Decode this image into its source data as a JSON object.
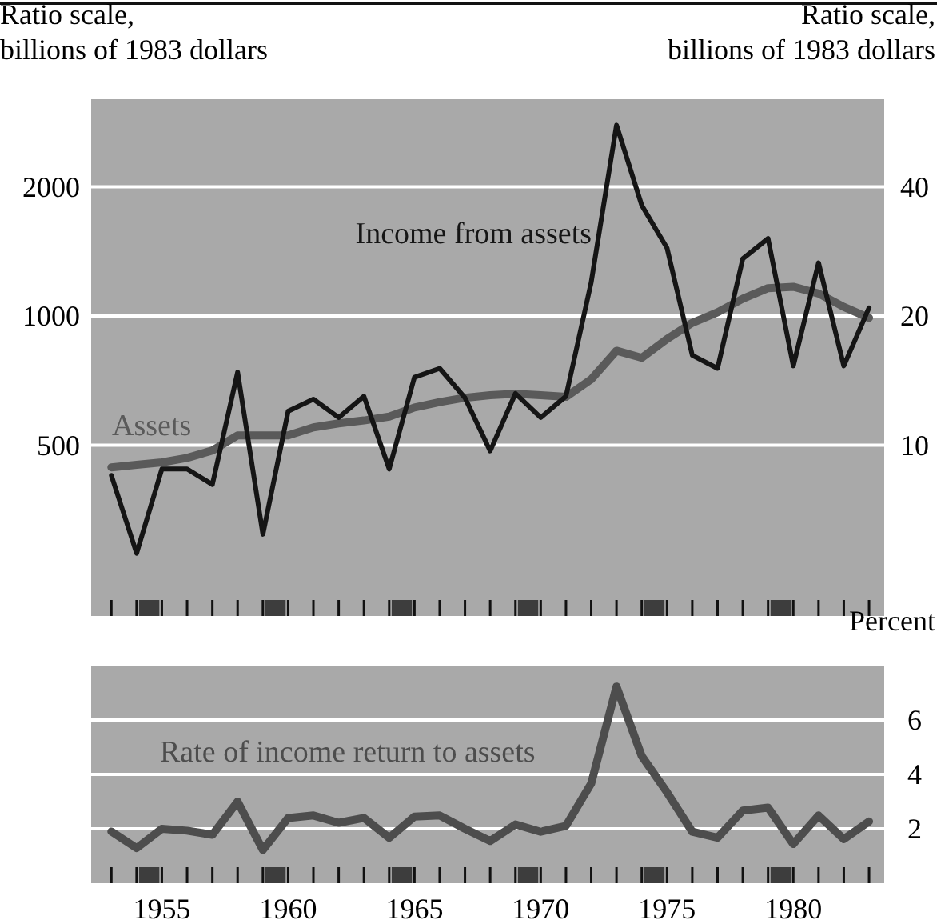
{
  "chart_data": [
    {
      "type": "line",
      "ylabel": "Ratio scale,\nbillions of 1983 dollars",
      "log": true,
      "grid": "y",
      "legend": false,
      "tick_labels": "y",
      "xlim": [
        1952.2,
        1983.6
      ],
      "ylim": [
        200,
        3200
      ],
      "yticks": [
        500,
        1000,
        2000
      ],
      "x": [
        1953,
        1954,
        1955,
        1956,
        1957,
        1958,
        1959,
        1960,
        1961,
        1962,
        1963,
        1964,
        1965,
        1966,
        1967,
        1968,
        1969,
        1970,
        1971,
        1972,
        1973,
        1974,
        1975,
        1976,
        1977,
        1978,
        1979,
        1980,
        1981,
        1982,
        1983
      ],
      "series": [
        {
          "name": "Assets",
          "color": "#5a5a5a",
          "values": [
            444,
            450,
            456,
            467,
            486,
            527,
            527,
            527,
            550,
            562,
            571,
            583,
            612,
            630,
            645,
            654,
            659,
            654,
            648,
            712,
            830,
            799,
            884,
            964,
            1020,
            1097,
            1161,
            1170,
            1128,
            1050,
            990
          ]
        }
      ]
    },
    {
      "type": "line",
      "y2label": "Ratio scale,\nbillions of 1983 dollars",
      "log": "y2",
      "legend": false,
      "tick_labels": "y",
      "xlim": [
        1952.2,
        1983.6
      ],
      "y2lim": [
        4,
        64
      ],
      "y2ticks": [
        10,
        20,
        40
      ],
      "x": [
        1953,
        1954,
        1955,
        1956,
        1957,
        1958,
        1959,
        1960,
        1961,
        1962,
        1963,
        1964,
        1965,
        1966,
        1967,
        1968,
        1969,
        1970,
        1971,
        1972,
        1973,
        1974,
        1975,
        1976,
        1977,
        1978,
        1979,
        1980,
        1981,
        1982,
        1983
      ],
      "series": [
        {
          "name": "Income from assets",
          "color": "#151515",
          "axis": "y2",
          "values": [
            8.5,
            5.6,
            8.8,
            8.8,
            8.1,
            14.8,
            6.2,
            12.0,
            12.8,
            11.6,
            13.0,
            8.8,
            14.4,
            15.1,
            12.9,
            9.7,
            13.2,
            11.6,
            13.0,
            24,
            55.7,
            36.2,
            28.8,
            16.2,
            15.1,
            27.2,
            30.3,
            15.3,
            26.6,
            15.3,
            20.9
          ]
        }
      ]
    },
    {
      "type": "line",
      "y2label": "Percent",
      "grid": "y",
      "legend": false,
      "xlim": [
        1952.2,
        1983.6
      ],
      "xticks": [
        {
          "value": 1953,
          "label": null
        },
        {
          "value": 1954,
          "label": null
        },
        {
          "value": 1955,
          "label": "1955"
        },
        {
          "value": 1956,
          "label": null
        },
        {
          "value": 1957,
          "label": null
        },
        {
          "value": 1958,
          "label": null
        },
        {
          "value": 1959,
          "label": null
        },
        {
          "value": 1960,
          "label": "1960"
        },
        {
          "value": 1961,
          "label": null
        },
        {
          "value": 1962,
          "label": null
        },
        {
          "value": 1963,
          "label": null
        },
        {
          "value": 1964,
          "label": null
        },
        {
          "value": 1965,
          "label": "1965"
        },
        {
          "value": 1966,
          "label": null
        },
        {
          "value": 1967,
          "label": null
        },
        {
          "value": 1968,
          "label": null
        },
        {
          "value": 1969,
          "label": null
        },
        {
          "value": 1970,
          "label": "1970"
        },
        {
          "value": 1971,
          "label": null
        },
        {
          "value": 1972,
          "label": null
        },
        {
          "value": 1973,
          "label": null
        },
        {
          "value": 1974,
          "label": null
        },
        {
          "value": 1975,
          "label": "1975"
        },
        {
          "value": 1976,
          "label": null
        },
        {
          "value": 1977,
          "label": null
        },
        {
          "value": 1978,
          "label": null
        },
        {
          "value": 1979,
          "label": null
        },
        {
          "value": 1980,
          "label": "1980"
        },
        {
          "value": 1981,
          "label": null
        },
        {
          "value": 1982,
          "label": null
        },
        {
          "value": 1983,
          "label": null
        }
      ],
      "y2lim": [
        0,
        8
      ],
      "y2ticks": [
        2,
        4,
        6
      ],
      "x": [
        1953,
        1954,
        1955,
        1956,
        1957,
        1958,
        1959,
        1960,
        1961,
        1962,
        1963,
        1964,
        1965,
        1966,
        1967,
        1968,
        1969,
        1970,
        1971,
        1972,
        1973,
        1974,
        1975,
        1976,
        1977,
        1978,
        1979,
        1980,
        1981,
        1982,
        1983
      ],
      "series": [
        {
          "name": "Rate of income return to assets",
          "color": "#4d4d4d",
          "axis": "y2",
          "values": [
            1.9,
            1.29,
            2.0,
            1.93,
            1.78,
            3.0,
            1.22,
            2.4,
            2.49,
            2.22,
            2.4,
            1.67,
            2.45,
            2.49,
            2.0,
            1.55,
            2.16,
            1.89,
            2.11,
            3.67,
            7.23,
            4.67,
            3.34,
            1.89,
            1.67,
            2.67,
            2.78,
            1.44,
            2.49,
            1.62,
            2.27
          ]
        }
      ]
    }
  ]
}
